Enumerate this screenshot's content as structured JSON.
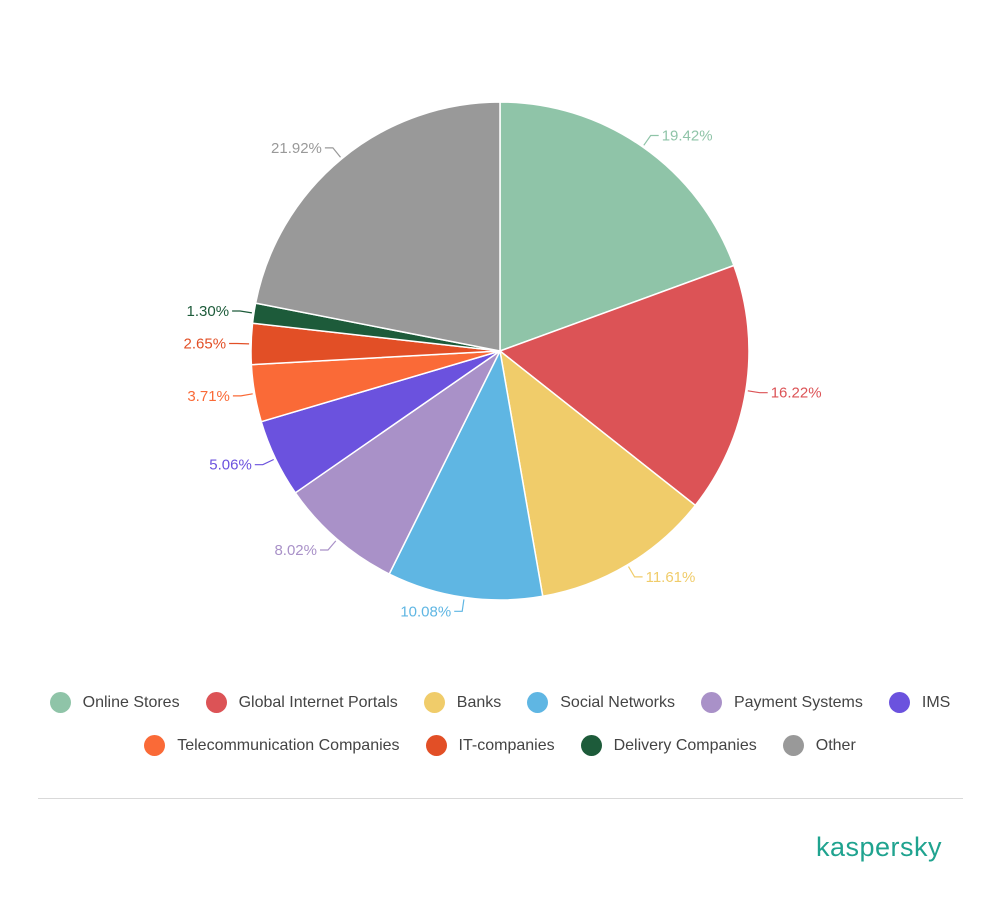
{
  "chart_data": {
    "type": "pie",
    "slices": [
      {
        "name": "Online Stores",
        "value": 19.42,
        "label": "19.42%",
        "color": "#8fc4a8"
      },
      {
        "name": "Global Internet Portals",
        "value": 16.22,
        "label": "16.22%",
        "color": "#dc5356"
      },
      {
        "name": "Banks",
        "value": 11.61,
        "label": "11.61%",
        "color": "#f0cc6a"
      },
      {
        "name": "Social Networks",
        "value": 10.08,
        "label": "10.08%",
        "color": "#5fb6e3"
      },
      {
        "name": "Payment Systems",
        "value": 8.02,
        "label": "8.02%",
        "color": "#a991c8"
      },
      {
        "name": "IMS",
        "value": 5.06,
        "label": "5.06%",
        "color": "#6b52de"
      },
      {
        "name": "Telecommunication Companies",
        "value": 3.71,
        "label": "3.71%",
        "color": "#fa6a37"
      },
      {
        "name": "IT-companies",
        "value": 2.65,
        "label": "2.65%",
        "color": "#e24f26"
      },
      {
        "name": "Delivery Companies",
        "value": 1.3,
        "label": "1.30%",
        "color": "#1d5b3a"
      },
      {
        "name": "Other",
        "value": 21.92,
        "label": "21.92%",
        "color": "#999999"
      }
    ],
    "legend_position": "bottom"
  },
  "legend": {
    "row1": [
      "Online Stores",
      "Global Internet Portals",
      "Banks",
      "Social Networks",
      "Payment Systems",
      "IMS"
    ],
    "row2": [
      "Telecommunication Companies",
      "IT-companies",
      "Delivery Companies",
      "Other"
    ]
  },
  "brand": {
    "logo_text": "kaspersky",
    "color": "#1fa38f"
  }
}
